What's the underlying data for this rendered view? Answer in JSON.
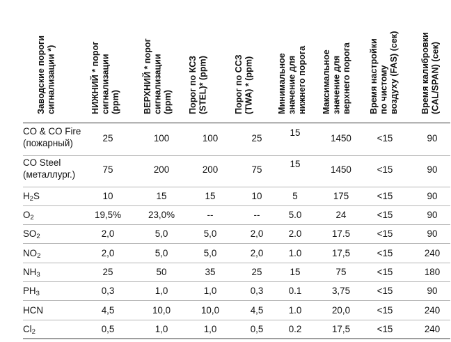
{
  "headers": [
    [
      "Заводские пороги",
      "сигнализации *)"
    ],
    [
      "НИЖНИЙ * порог",
      "сигнализации",
      "(ppm)"
    ],
    [
      "ВЕРХНИЙ * порог",
      "сигнализации",
      "(ppm)"
    ],
    [
      "Порог по КСЗ",
      "(STEL)* (ppm)"
    ],
    [
      "Порог по ССЗ",
      "(TWA) * (ppm)"
    ],
    [
      "Минимальное",
      "значение для",
      "нижнего порога"
    ],
    [
      "Максимальное",
      "значение для",
      "верхнего порога"
    ],
    [
      "Время настройки",
      "по чистому",
      "воздуху (FAS) (сек)"
    ],
    [
      "Время калибровки",
      "(CAL/SPAN) (сек)"
    ]
  ],
  "rows": [
    {
      "gas": "CO & CO Fire",
      "gas2": "(пожарный)",
      "low": "25",
      "high": "100",
      "stel": "100",
      "twa": "25",
      "min": "15",
      "max": "1450",
      "fas": "<15",
      "cal": "90"
    },
    {
      "gas": "CO Steel",
      "gas2": "(металлург.)",
      "low": "75",
      "high": "200",
      "stel": "200",
      "twa": "75",
      "min": "15",
      "max": "1450",
      "fas": "<15",
      "cal": "90"
    },
    {
      "gas": "H",
      "sub": "2",
      "gas_suffix": "S",
      "low": "10",
      "high": "15",
      "stel": "15",
      "twa": "10",
      "min": "5",
      "max": "175",
      "fas": "<15",
      "cal": "90"
    },
    {
      "gas": "O",
      "sub": "2",
      "gas_suffix": "",
      "low": "19,5%",
      "high": "23,0%",
      "stel": "--",
      "twa": "--",
      "min": "5.0",
      "max": "24",
      "fas": "<15",
      "cal": "90"
    },
    {
      "gas": "SO",
      "sub": "2",
      "gas_suffix": "",
      "low": "2,0",
      "high": "5,0",
      "stel": "5,0",
      "twa": "2,0",
      "min": "2.0",
      "max": "17.5",
      "fas": "<15",
      "cal": "90"
    },
    {
      "gas": "NO",
      "sub": "2",
      "gas_suffix": "",
      "low": "2,0",
      "high": "5,0",
      "stel": "5,0",
      "twa": "2,0",
      "min": "1.0",
      "max": "17,5",
      "fas": "<15",
      "cal": "240"
    },
    {
      "gas": "NH",
      "sub": "3",
      "gas_suffix": "",
      "low": "25",
      "high": "50",
      "stel": "35",
      "twa": "25",
      "min": "15",
      "max": "75",
      "fas": "<15",
      "cal": "180"
    },
    {
      "gas": "PH",
      "sub": "3",
      "gas_suffix": "",
      "low": "0,3",
      "high": "1,0",
      "stel": "1,0",
      "twa": "0,3",
      "min": "0.1",
      "max": "3,75",
      "fas": "<15",
      "cal": "90"
    },
    {
      "gas": "HCN",
      "sub": "",
      "gas_suffix": "",
      "low": "4,5",
      "high": "10,0",
      "stel": "10,0",
      "twa": "4,5",
      "min": "1.0",
      "max": "20,0",
      "fas": "<15",
      "cal": "240"
    },
    {
      "gas": "Cl",
      "sub": "2",
      "gas_suffix": "",
      "low": "0,5",
      "high": "1,0",
      "stel": "1,0",
      "twa": "0,5",
      "min": "0.2",
      "max": "17,5",
      "fas": "<15",
      "cal": "240"
    }
  ]
}
